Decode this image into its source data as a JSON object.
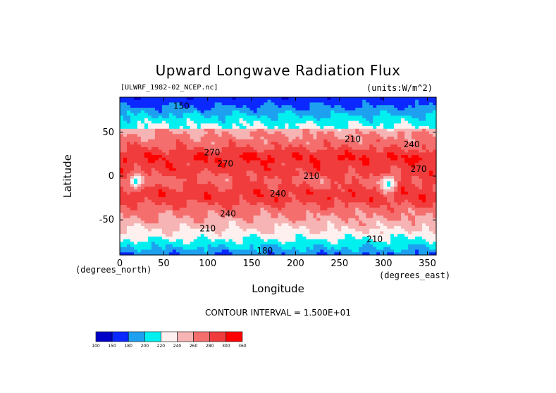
{
  "chart_data": {
    "type": "heatmap",
    "title": "Upward Longwave Radiation Flux",
    "file_label": "[ULWRF_1982-02_NCEP.nc]",
    "units_label": "(units:W/m^2)",
    "xlabel": "Longitude",
    "ylabel": "Latitude",
    "x_unit_note": "(degrees_east)",
    "y_unit_note": "(degrees_north)",
    "xlim": [
      0,
      360
    ],
    "ylim": [
      -90,
      90
    ],
    "x_ticks": [
      0,
      50,
      100,
      150,
      200,
      250,
      300,
      350
    ],
    "y_ticks": [
      50,
      0,
      -50
    ],
    "contour_interval_text": "CONTOUR INTERVAL = 1.500E+01",
    "colorbar": {
      "levels": [
        100,
        150,
        180,
        200,
        220,
        240,
        260,
        280,
        300,
        360
      ],
      "colors": [
        "#0000c8",
        "#0a28ff",
        "#1ea0f0",
        "#00f0f0",
        "#fff0f0",
        "#f6b4b4",
        "#f56e6e",
        "#f03c3c",
        "#ff0000"
      ]
    },
    "contour_labels": [
      {
        "text": "210",
        "lon": 265,
        "lat": 42
      },
      {
        "text": "240",
        "lon": 332,
        "lat": 36
      },
      {
        "text": "270",
        "lon": 105,
        "lat": 27
      },
      {
        "text": "270",
        "lon": 120,
        "lat": 14
      },
      {
        "text": "270",
        "lon": 340,
        "lat": 8
      },
      {
        "text": "240",
        "lon": 180,
        "lat": -20
      },
      {
        "text": "210",
        "lon": 218,
        "lat": 0
      },
      {
        "text": "240",
        "lon": 123,
        "lat": -43
      },
      {
        "text": "210",
        "lon": 100,
        "lat": -60
      },
      {
        "text": "210",
        "lon": 290,
        "lat": -72
      },
      {
        "text": "180",
        "lon": 165,
        "lat": -85
      },
      {
        "text": "150",
        "lon": 70,
        "lat": 80
      }
    ]
  }
}
